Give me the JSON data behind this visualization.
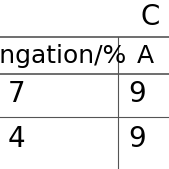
{
  "background_color": "#ffffff",
  "text_color": "#000000",
  "line_color": "#555555",
  "top_header": "C",
  "col1_header": "longation/%",
  "col2_header": "A",
  "row1_col1": "7",
  "row1_col2": "9",
  "row2_col1": "4",
  "row2_col2": "9",
  "figsize": [
    1.69,
    1.69
  ],
  "dpi": 100
}
